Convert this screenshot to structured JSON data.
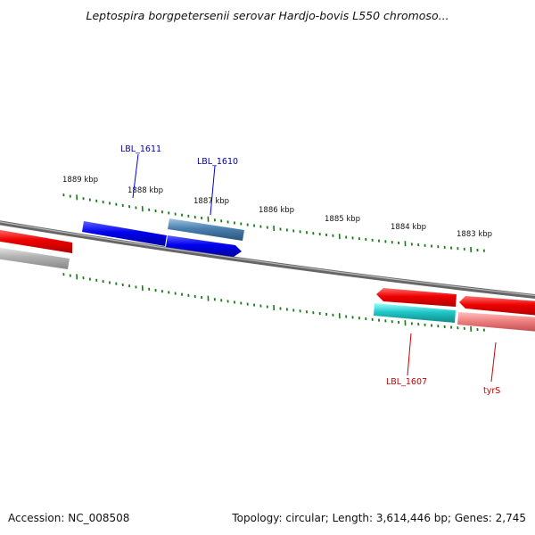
{
  "title": "Leptospira borgpetersenii serovar Hardjo-bovis L550 chromoso...",
  "footer": {
    "accession": "Accession: NC_008508",
    "summary": "Topology: circular; Length: 3,614,446 bp; Genes: 2,745"
  },
  "ticks": {
    "color": "#1a7a1a",
    "labels": [
      {
        "text": "1889 kbp",
        "kbp": 1889
      },
      {
        "text": "1888 kbp",
        "kbp": 1888
      },
      {
        "text": "1887 kbp",
        "kbp": 1887
      },
      {
        "text": "1886 kbp",
        "kbp": 1886
      },
      {
        "text": "1885 kbp",
        "kbp": 1885
      },
      {
        "text": "1884 kbp",
        "kbp": 1884
      },
      {
        "text": "1883 kbp",
        "kbp": 1883
      }
    ]
  },
  "genes": [
    {
      "label": "LBL_1611",
      "color": "#0000ee",
      "strand": "plus",
      "labelColor": "#0000aa"
    },
    {
      "label": "LBL_1610",
      "color": "#4a7fb0",
      "strand": "plus",
      "labelColor": "#0000aa"
    },
    {
      "label": "LBL_1607",
      "color": "#20c8c8",
      "strand": "minus",
      "labelColor": "#cc0000"
    },
    {
      "label": "tyrS",
      "color": "#f08080",
      "strand": "minus",
      "labelColor": "#cc0000"
    }
  ],
  "colors": {
    "backbone": "#808080",
    "forward_red": "#ee0000",
    "reverse_gray": "#b0b0b0",
    "reverse_red": "#ee0000"
  }
}
